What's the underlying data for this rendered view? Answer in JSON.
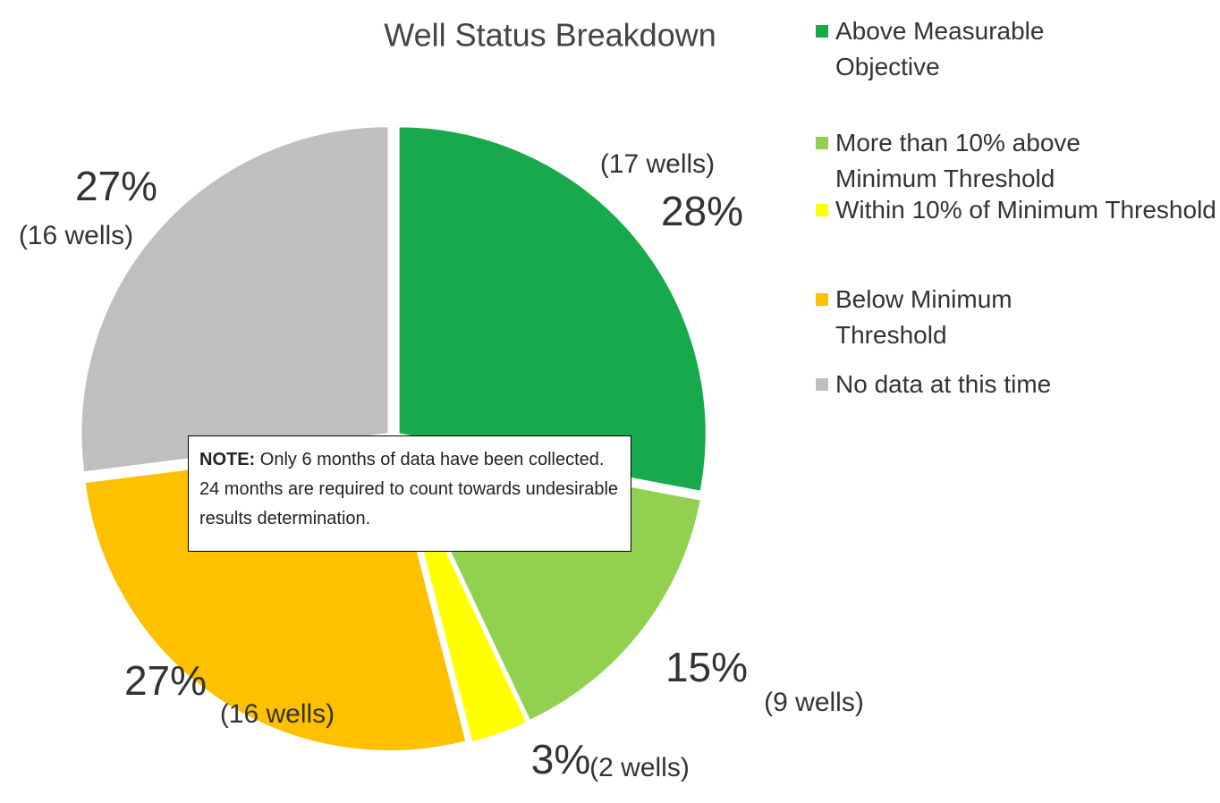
{
  "chart_data": {
    "type": "pie",
    "title": "Well Status Breakdown",
    "categories": [
      "Above Measurable Objective",
      "More than 10% above Minimum Threshold",
      "Within 10% of Minimum Threshold",
      "Below Minimum Threshold",
      "No data at this time"
    ],
    "values": [
      28,
      15,
      3,
      27,
      27
    ],
    "value_labels": [
      "28%",
      "15%",
      "3%",
      "27%",
      "27%"
    ],
    "count_labels": [
      "(17 wells)",
      "(9 wells)",
      "(2 wells)",
      "(16 wells)",
      "(16 wells)"
    ],
    "colors": [
      "#17a94b",
      "#92d050",
      "#ffff00",
      "#ffc000",
      "#bfbfbf"
    ],
    "legend": "right",
    "note": {
      "label": "NOTE:",
      "text": "Only 6 months of data have been collected. 24 months are required to count towards undesirable results determination."
    }
  }
}
